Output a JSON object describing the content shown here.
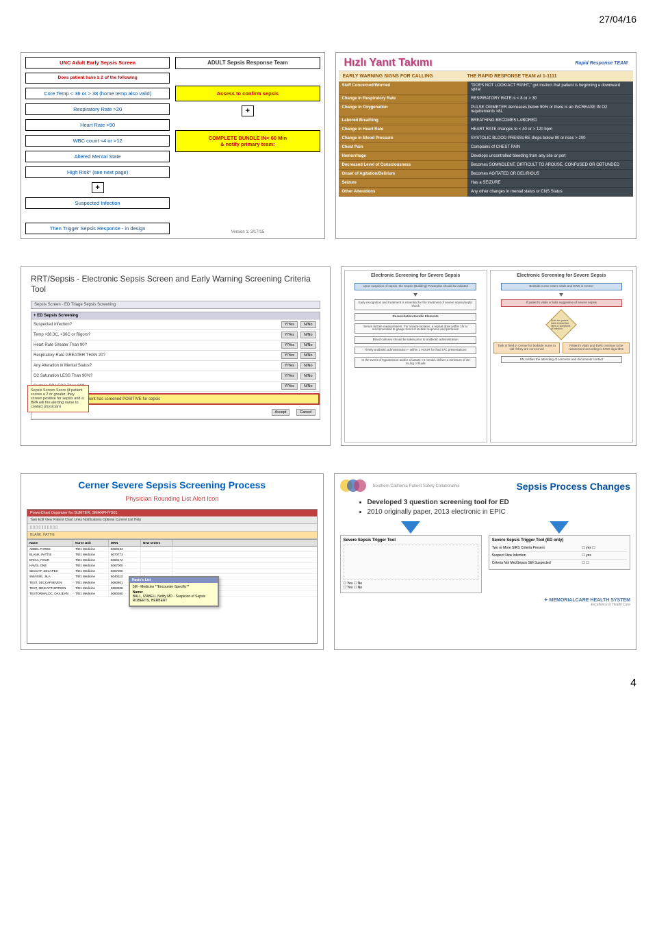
{
  "page": {
    "date": "27/04/16",
    "number": "4"
  },
  "panel1": {
    "left_title": "UNC Adult Early Sepsis Screen",
    "left_sub": "Does patient have ≥ 2 of the following",
    "criteria": [
      "Core Temp < 36 or > 38\n(home temp also valid)",
      "Respiratory Rate >20",
      "Heart Rate >90",
      "WBC count <4 or >12",
      "Altered Mental State",
      "High Risk* (see next page)"
    ],
    "plus": "+",
    "suspected": "Suspected Infection",
    "trigger": "Then Trigger Sepsis Response - in design",
    "right_title": "ADULT Sepsis Response Team",
    "assess": "Assess to confirm sepsis",
    "bundle": "COMPLETE BUNDLE IN< 60 Min\n& notify primary team:",
    "version": "Version 1: 3/17/15"
  },
  "panel2": {
    "title": "Hızlı Yanıt Takımı",
    "logo": "Rapid Response TEAM",
    "sub_left": "EARLY WARNING SIGNS FOR CALLING",
    "sub_right": "THE RAPID RESPONSE TEAM at 1-1111",
    "rows": [
      {
        "label": "Staff Concerned/Worried",
        "desc": "\"DOES NOT LOOK/ACT RIGHT,\" gut instinct that patient is beginning a downward spiral"
      },
      {
        "label": "Change in Respiratory Rate",
        "desc": "RESPIRATORY RATE is < 8 or > 30"
      },
      {
        "label": "Change in Oxygenation",
        "desc": "PULSE OXIMETER decreases below 90% or there is an INCREASE IN O2 requirements >8L"
      },
      {
        "label": "Labored Breathing",
        "desc": "BREATHING BECOMES LABORED"
      },
      {
        "label": "Change in Heart Rate",
        "desc": "HEART RATE changes to < 40 or > 120 bpm"
      },
      {
        "label": "Change in Blood Pressure",
        "desc": "SYSTOLIC BLOOD PRESSURE drops below 90 or rises > 200"
      },
      {
        "label": "Chest Pain",
        "desc": "Complains of CHEST PAIN"
      },
      {
        "label": "Hemorrhage",
        "desc": "Develops uncontrolled bleeding from any site or port"
      },
      {
        "label": "Decreased Level of Consciousness",
        "desc": "Becomes SOMNOLENT, DIFFICULT TO AROUSE, CONFUSED OR OBTUNDED"
      },
      {
        "label": "Onset of Agitation/Delirium",
        "desc": "Becomes AGITATED OR DELIRIOUS"
      },
      {
        "label": "Seizure",
        "desc": "Has a SEIZURE"
      },
      {
        "label": "Other Alterations",
        "desc": "Any other changes in mental status or CNS Status"
      }
    ]
  },
  "panel3": {
    "title": "RRT/Sepsis - Electronic Sepsis Screen and Early Warning Screening Criteria Tool",
    "toolbar": "Sepsis Screen - ED Triage Sepsis Screening",
    "section": "+ ED Sepsis Screening",
    "rows": [
      "Suspected Infection?",
      "Temp >38.3C, <36C or Rigors?",
      "Heart Rate Greater Than 90?",
      "Respiratory Rate GREATER THAN 20?",
      "Any Alteration in Mental Status?",
      "O2 Saturation LESS Than 90%?",
      "Systolic BP LESS Than 90?"
    ],
    "alert": "Notify ED Physician that patient has screened POSITIVE for sepsis",
    "callout": "Sepsis Screen Score (if patient scores a 2 or greater, they screen positive for sepsis and a BPA will fire alerting nurse to contact physician)",
    "btn_yes": "Y/Yes",
    "btn_no": "N/No",
    "btn_accept": "Accept",
    "btn_cancel": "Cancel"
  },
  "panel4": {
    "fc1_title": "Electronic Screening for Severe Sepsis",
    "fc2_title": "Electronic Screening for Severe Sepsis",
    "fc1_boxes": [
      "Upon suspicion of sepsis, the Sepsis (Building) Powerplan should be initiated",
      "Early recognition and treatment is essential for the treatment of severe sepsis/septic shock",
      "Resuscitation Bundle Elements",
      "Serum lactate measurement. For severe lactates, a repeat draw within 1hr is recommended to gauge trend of lactate response and perfusion",
      "Blood cultures should be taken prior to antibiotic administration",
      "Timely antibiotic administration – within 1 HOUR for fluid IVC presentations",
      "In the event of hypotension and/or a lactate >4 mmol/L deliver a minimum of 30 mL/kg of fluids"
    ],
    "fc2_boxes": [
      "Bedside nurse enters vitals and EWS in Cerner",
      "If patient's vitals or labs suggestive of severe sepsis",
      "Does the patient have at least two signs & symptoms of infection",
      "Task in fired in Cerner for bedside nurse to call if they are concerned",
      "Patient's vitals and EWS continue to be reassessed according to EWS algorithm",
      "RN notifies the attending of concerns and documents contact"
    ]
  },
  "panel5": {
    "title": "Cerner Severe Sepsis Screening Process",
    "subtitle": "Physician Rounding List Alert Icon",
    "window_title": "PowerChart Organizer for SUMTER, SMANPHYS01",
    "menubar": "Task  Edit  View  Patient  Chart  Links  Notifications  Options  Current List  Help",
    "headers": [
      "Name",
      "Nurse Unit",
      "MRN",
      "New Orders"
    ],
    "rows": [
      [
        "ABBEL THREE",
        "T/D1 Medicine",
        "5060193",
        ""
      ],
      [
        "BLANK, PATTIE",
        "T/D1 Medicine",
        "5070773",
        ""
      ],
      [
        "ERICA, FOUR",
        "T/D1 Medicine",
        "5060174",
        ""
      ],
      [
        "HAVIS, ONE",
        "T/D1 Medicine",
        "5067000",
        ""
      ],
      [
        "SECCAP, SECAPEX",
        "T/D1 Medicine",
        "5067000",
        ""
      ],
      [
        "SWASSE, JILA",
        "T/D1 Medicine",
        "5040113",
        "⚠"
      ],
      [
        "TEST, SECCAPSEVEN",
        "T/D1 Medicine",
        "5060801",
        ""
      ],
      [
        "TEST, MDICAPTHIRTEEN",
        "T/D1 Medicine",
        "5060906",
        ""
      ],
      [
        "TESTORMALDC, DAYJEAN",
        "T/D1 Medicine",
        "5060360",
        ""
      ]
    ],
    "popup_title": "Havis's List",
    "popup_rows": [
      "5M - Medicine    **Encounter-Specific**",
      "Name:",
      "BALL, IZABELL        Notify MD - Suspicion of Sepsis",
      "ROBERTS, HERBERT"
    ]
  },
  "panel6": {
    "title": "Sepsis Process Changes",
    "org": "Southern California Patient Safety Collaborative",
    "bullets": [
      "Developed 3 question screening tool for ED",
      "2010 originally paper, 2013 electronic in EPIC"
    ],
    "form1_title": "Severe Sepsis Trigger Tool",
    "form2_title": "Severe Sepsis Trigger Tool (ED only)",
    "form2_rows": [
      "Two or More SIRS Criteria Present",
      "Suspect New Infection",
      "Criteria Not Met/Sepsis Still Suspected"
    ],
    "yes": "yes",
    "footer_logo": "MEMORIALCARE HEALTH SYSTEM",
    "footer_tag": "Excellence in Health Care"
  }
}
